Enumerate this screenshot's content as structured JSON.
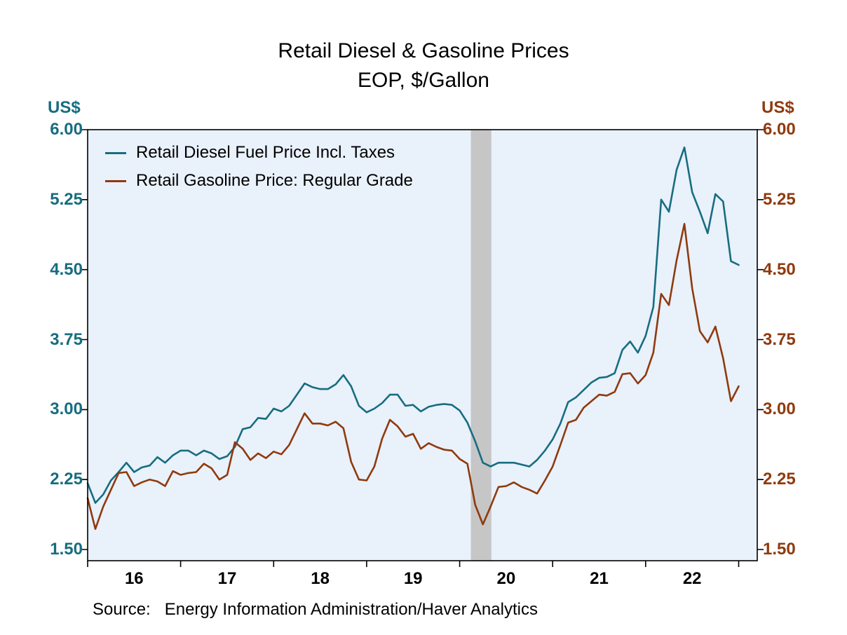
{
  "chart_data": {
    "type": "line",
    "title": "Retail Diesel & Gasoline Prices",
    "subtitle": "EOP, $/Gallon",
    "left_axis_label": "US$",
    "right_axis_label": "US$",
    "source": "Source:   Energy Information Administration/Haver Analytics",
    "grid": false,
    "legend_position": "top-left",
    "plot_background": "#e9f1fb",
    "xlim": [
      2016.0,
      2023.2
    ],
    "ylim": [
      1.38,
      6.0
    ],
    "y_ticks": [
      1.5,
      2.25,
      3.0,
      3.75,
      4.5,
      5.25,
      6.0
    ],
    "y_tick_labels": [
      "1.50",
      "2.25",
      "3.00",
      "3.75",
      "4.50",
      "5.25",
      "6.00"
    ],
    "x_tick_positions": [
      2016,
      2017,
      2018,
      2019,
      2020,
      2021,
      2022,
      2023
    ],
    "x_label_positions": [
      2016.5,
      2017.5,
      2018.5,
      2019.5,
      2020.5,
      2021.5,
      2022.5
    ],
    "x_labels": [
      "16",
      "17",
      "18",
      "19",
      "20",
      "21",
      "22"
    ],
    "recession_band": {
      "x_start": 2020.12,
      "x_end": 2020.34,
      "color": "#c6c6c6"
    },
    "x": [
      2016.0,
      2016.083,
      2016.167,
      2016.25,
      2016.333,
      2016.417,
      2016.5,
      2016.583,
      2016.667,
      2016.75,
      2016.833,
      2016.917,
      2017.0,
      2017.083,
      2017.167,
      2017.25,
      2017.333,
      2017.417,
      2017.5,
      2017.583,
      2017.667,
      2017.75,
      2017.833,
      2017.917,
      2018.0,
      2018.083,
      2018.167,
      2018.25,
      2018.333,
      2018.417,
      2018.5,
      2018.583,
      2018.667,
      2018.75,
      2018.833,
      2018.917,
      2019.0,
      2019.083,
      2019.167,
      2019.25,
      2019.333,
      2019.417,
      2019.5,
      2019.583,
      2019.667,
      2019.75,
      2019.833,
      2019.917,
      2020.0,
      2020.083,
      2020.167,
      2020.25,
      2020.333,
      2020.417,
      2020.5,
      2020.583,
      2020.667,
      2020.75,
      2020.833,
      2020.917,
      2021.0,
      2021.083,
      2021.167,
      2021.25,
      2021.333,
      2021.417,
      2021.5,
      2021.583,
      2021.667,
      2021.75,
      2021.833,
      2021.917,
      2022.0,
      2022.083,
      2022.167,
      2022.25,
      2022.333,
      2022.417,
      2022.5,
      2022.583,
      2022.667,
      2022.75,
      2022.833,
      2022.917,
      2023.0
    ],
    "series": [
      {
        "id": "diesel",
        "name": "Retail Diesel Fuel Price Incl. Taxes",
        "color": "#176d80",
        "values": [
          2.21,
          2.0,
          2.09,
          2.24,
          2.33,
          2.43,
          2.33,
          2.38,
          2.4,
          2.49,
          2.43,
          2.51,
          2.56,
          2.56,
          2.51,
          2.56,
          2.53,
          2.47,
          2.5,
          2.6,
          2.79,
          2.81,
          2.91,
          2.9,
          3.01,
          2.98,
          3.04,
          3.16,
          3.28,
          3.24,
          3.22,
          3.22,
          3.27,
          3.37,
          3.25,
          3.04,
          2.97,
          3.01,
          3.07,
          3.16,
          3.16,
          3.04,
          3.05,
          2.98,
          3.03,
          3.05,
          3.06,
          3.05,
          2.99,
          2.86,
          2.66,
          2.43,
          2.39,
          2.43,
          2.43,
          2.43,
          2.41,
          2.39,
          2.46,
          2.56,
          2.68,
          2.85,
          3.08,
          3.13,
          3.21,
          3.29,
          3.34,
          3.35,
          3.39,
          3.64,
          3.73,
          3.61,
          3.79,
          4.1,
          5.25,
          5.12,
          5.57,
          5.81,
          5.33,
          5.12,
          4.89,
          5.31,
          5.23,
          4.59,
          4.55
        ]
      },
      {
        "id": "gasoline",
        "name": "Retail Gasoline Price: Regular Grade",
        "color": "#8f3a0e",
        "values": [
          2.05,
          1.72,
          1.96,
          2.14,
          2.32,
          2.33,
          2.18,
          2.22,
          2.25,
          2.23,
          2.18,
          2.34,
          2.3,
          2.32,
          2.33,
          2.42,
          2.37,
          2.25,
          2.3,
          2.65,
          2.58,
          2.46,
          2.53,
          2.48,
          2.55,
          2.52,
          2.62,
          2.79,
          2.96,
          2.85,
          2.85,
          2.83,
          2.87,
          2.8,
          2.44,
          2.25,
          2.24,
          2.39,
          2.69,
          2.89,
          2.82,
          2.71,
          2.74,
          2.58,
          2.64,
          2.6,
          2.57,
          2.56,
          2.47,
          2.42,
          1.98,
          1.77,
          1.96,
          2.17,
          2.18,
          2.22,
          2.17,
          2.14,
          2.1,
          2.24,
          2.39,
          2.62,
          2.86,
          2.89,
          3.02,
          3.09,
          3.16,
          3.15,
          3.19,
          3.38,
          3.39,
          3.28,
          3.37,
          3.61,
          4.24,
          4.12,
          4.6,
          4.99,
          4.3,
          3.84,
          3.72,
          3.89,
          3.55,
          3.09,
          3.25
        ]
      }
    ]
  }
}
